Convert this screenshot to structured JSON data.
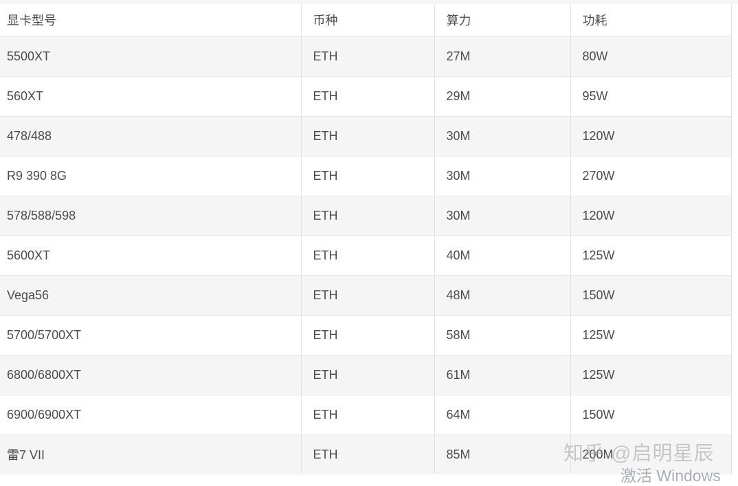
{
  "table": {
    "columns": [
      {
        "key": "model",
        "label": "显卡型号"
      },
      {
        "key": "coin",
        "label": "币种"
      },
      {
        "key": "hashrate",
        "label": "算力"
      },
      {
        "key": "power",
        "label": "功耗"
      }
    ],
    "rows": [
      {
        "model": "5500XT",
        "coin": "ETH",
        "hashrate": "27M",
        "power": "80W"
      },
      {
        "model": "560XT",
        "coin": "ETH",
        "hashrate": "29M",
        "power": "95W"
      },
      {
        "model": "478/488",
        "coin": "ETH",
        "hashrate": "30M",
        "power": "120W"
      },
      {
        "model": "R9 390 8G",
        "coin": "ETH",
        "hashrate": "30M",
        "power": "270W"
      },
      {
        "model": "578/588/598",
        "coin": "ETH",
        "hashrate": "30M",
        "power": "120W"
      },
      {
        "model": "5600XT",
        "coin": "ETH",
        "hashrate": "40M",
        "power": "125W"
      },
      {
        "model": "Vega56",
        "coin": "ETH",
        "hashrate": "48M",
        "power": "150W"
      },
      {
        "model": "5700/5700XT",
        "coin": "ETH",
        "hashrate": "58M",
        "power": "125W"
      },
      {
        "model": "6800/6800XT",
        "coin": "ETH",
        "hashrate": "61M",
        "power": "125W"
      },
      {
        "model": "6900/6900XT",
        "coin": "ETH",
        "hashrate": "64M",
        "power": "150W"
      },
      {
        "model": "雷7 VII",
        "coin": "ETH",
        "hashrate": "85M",
        "power": "200M"
      }
    ]
  },
  "watermarks": {
    "zhihu": "知乎 @启明星辰",
    "windows_activation": "激活 Windows"
  },
  "colors": {
    "row_alt_bg": "#f5f5f5",
    "row_bg": "#ffffff",
    "border_vertical": "#e2e2e2",
    "border_horizontal": "#e6e6e6",
    "text": "#4c4c4c",
    "watermark_zhihu": "#9e9ea2",
    "watermark_windows": "#8c939e"
  }
}
